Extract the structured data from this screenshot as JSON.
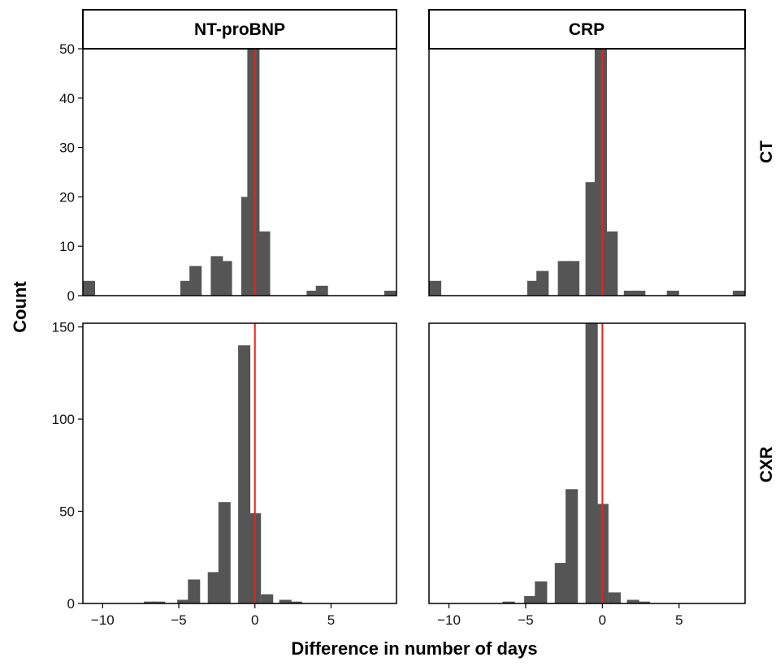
{
  "chart_data": {
    "type": "bar",
    "subtype": "faceted-histogram",
    "xlabel": "Difference in number of days",
    "ylabel": "Count",
    "xlim": [
      -11.3,
      9.3
    ],
    "bin_width": 0.8,
    "xticks": [
      -10,
      -5,
      0,
      5
    ],
    "reference_line": {
      "x": 0,
      "color": "#e8231a"
    },
    "bar_color": "#555555",
    "grid": false,
    "column_labels": [
      "NT-proBNP",
      "CRP"
    ],
    "row_labels": [
      "CT",
      "CXR"
    ],
    "panels": [
      {
        "column": "NT-proBNP",
        "row": "CT",
        "ylim": [
          0,
          50
        ],
        "yticks": [
          0,
          10,
          20,
          30,
          40,
          50
        ],
        "bins": [
          {
            "x": -10.9,
            "count": 3
          },
          {
            "x": -4.5,
            "count": 3
          },
          {
            "x": -3.9,
            "count": 6
          },
          {
            "x": -2.5,
            "count": 8
          },
          {
            "x": -1.9,
            "count": 7
          },
          {
            "x": -0.5,
            "count": 20
          },
          {
            "x": -0.1,
            "count": 50
          },
          {
            "x": 0.6,
            "count": 13
          },
          {
            "x": 3.8,
            "count": 1
          },
          {
            "x": 4.4,
            "count": 2
          },
          {
            "x": 8.9,
            "count": 1
          }
        ]
      },
      {
        "column": "CRP",
        "row": "CT",
        "ylim": [
          0,
          50
        ],
        "yticks": [
          0,
          10,
          20,
          30,
          40,
          50
        ],
        "bins": [
          {
            "x": -10.9,
            "count": 3
          },
          {
            "x": -4.5,
            "count": 3
          },
          {
            "x": -3.9,
            "count": 5
          },
          {
            "x": -2.5,
            "count": 7
          },
          {
            "x": -1.9,
            "count": 7
          },
          {
            "x": -0.7,
            "count": 23
          },
          {
            "x": -0.1,
            "count": 50
          },
          {
            "x": 0.6,
            "count": 13
          },
          {
            "x": 1.8,
            "count": 1
          },
          {
            "x": 2.4,
            "count": 1
          },
          {
            "x": 4.6,
            "count": 1
          },
          {
            "x": 8.9,
            "count": 1
          }
        ]
      },
      {
        "column": "NT-proBNP",
        "row": "CXR",
        "ylim": [
          0,
          152
        ],
        "yticks": [
          0,
          50,
          100,
          150
        ],
        "bins": [
          {
            "x": -6.9,
            "count": 1
          },
          {
            "x": -6.3,
            "count": 1
          },
          {
            "x": -4.7,
            "count": 2
          },
          {
            "x": -4.0,
            "count": 13
          },
          {
            "x": -2.7,
            "count": 17
          },
          {
            "x": -2.0,
            "count": 55
          },
          {
            "x": -0.7,
            "count": 140
          },
          {
            "x": 0.0,
            "count": 49
          },
          {
            "x": 0.8,
            "count": 5
          },
          {
            "x": 2.0,
            "count": 2
          },
          {
            "x": 2.7,
            "count": 1
          }
        ]
      },
      {
        "column": "CRP",
        "row": "CXR",
        "ylim": [
          0,
          152
        ],
        "yticks": [
          0,
          50,
          100,
          150
        ],
        "bins": [
          {
            "x": -6.1,
            "count": 1
          },
          {
            "x": -4.7,
            "count": 4
          },
          {
            "x": -4.0,
            "count": 12
          },
          {
            "x": -2.7,
            "count": 22
          },
          {
            "x": -2.0,
            "count": 62
          },
          {
            "x": -0.7,
            "count": 152
          },
          {
            "x": 0.0,
            "count": 54
          },
          {
            "x": 0.8,
            "count": 6
          },
          {
            "x": 2.0,
            "count": 2
          },
          {
            "x": 2.7,
            "count": 1
          }
        ]
      }
    ]
  }
}
